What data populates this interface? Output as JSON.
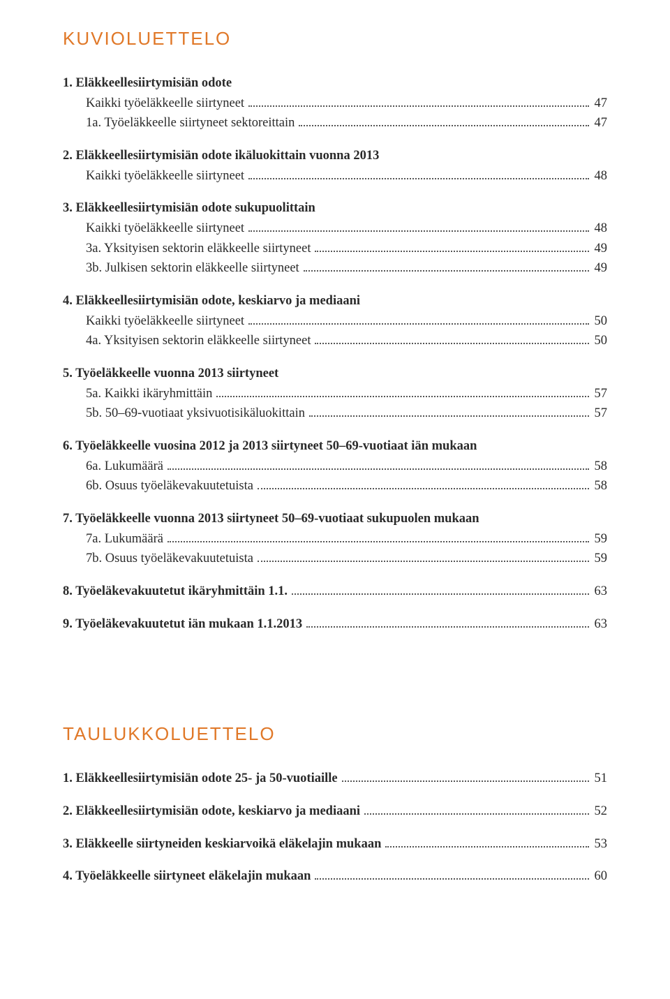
{
  "colors": {
    "heading": "#e07828",
    "text": "#2a2a2a",
    "dots": "#555555",
    "background": "#ffffff"
  },
  "typography": {
    "heading_fontsize": 26,
    "body_fontsize": 18.5,
    "heading_letterspacing": 2
  },
  "sections": [
    {
      "title": "KUVIOLUETTELO",
      "items": [
        {
          "label": "1. Eläkkeellesiirtymisiän odote",
          "subs": [
            {
              "label": "Kaikki työeläkkeelle siirtyneet",
              "page": "47"
            },
            {
              "label": "1a. Työeläkkeelle siirtyneet sektoreittain",
              "page": "47"
            }
          ]
        },
        {
          "label": "2. Eläkkeellesiirtymisiän odote ikäluokittain vuonna 2013",
          "subs": [
            {
              "label": "Kaikki työeläkkeelle siirtyneet",
              "page": "48"
            }
          ]
        },
        {
          "label": "3. Eläkkeellesiirtymisiän odote sukupuolittain",
          "subs": [
            {
              "label": "Kaikki työeläkkeelle siirtyneet",
              "page": "48"
            },
            {
              "label": "3a. Yksityisen sektorin eläkkeelle siirtyneet",
              "page": "49"
            },
            {
              "label": "3b. Julkisen sektorin eläkkeelle siirtyneet",
              "page": "49"
            }
          ]
        },
        {
          "label": "4. Eläkkeellesiirtymisiän odote, keskiarvo ja mediaani",
          "subs": [
            {
              "label": "Kaikki työeläkkeelle siirtyneet",
              "page": "50"
            },
            {
              "label": "4a. Yksityisen sektorin eläkkeelle siirtyneet",
              "page": "50"
            }
          ]
        },
        {
          "label": "5. Työeläkkeelle vuonna 2013 siirtyneet",
          "subs": [
            {
              "label": "5a. Kaikki ikäryhmittäin",
              "page": "57"
            },
            {
              "label": "5b. 50–69-vuotiaat yksivuotisikäluokittain",
              "page": "57"
            }
          ]
        },
        {
          "label": "6. Työeläkkeelle vuosina 2012 ja 2013 siirtyneet 50–69-vuotiaat iän mukaan",
          "subs": [
            {
              "label": "6a. Lukumäärä",
              "page": "58"
            },
            {
              "label": "6b. Osuus työeläkevakuutetuista",
              "page": " 58"
            }
          ]
        },
        {
          "label": "7. Työeläkkeelle vuonna 2013 siirtyneet 50–69-vuotiaat sukupuolen mukaan",
          "subs": [
            {
              "label": "7a. Lukumäärä",
              "page": "59"
            },
            {
              "label": "7b. Osuus työeläkevakuutetuista",
              "page": "59"
            }
          ]
        },
        {
          "label": "8. Työeläkevakuutetut ikäryhmittäin 1.1.",
          "page": "63"
        },
        {
          "label": "9. Työeläkevakuutetut iän mukaan 1.1.2013",
          "page": "63"
        }
      ]
    },
    {
      "title": "TAULUKKOLUETTELO",
      "items": [
        {
          "label": "1. Eläkkeellesiirtymisiän odote 25- ja 50-vuotiaille",
          "page": "51"
        },
        {
          "label": "2. Eläkkeellesiirtymisiän odote, keskiarvo ja mediaani",
          "page": "52"
        },
        {
          "label": "3. Eläkkeelle siirtyneiden keskiarvoikä eläkelajin mukaan",
          "page": "53"
        },
        {
          "label": "4. Työeläkkeelle siirtyneet eläkelajin mukaan",
          "page": "60"
        }
      ]
    }
  ]
}
